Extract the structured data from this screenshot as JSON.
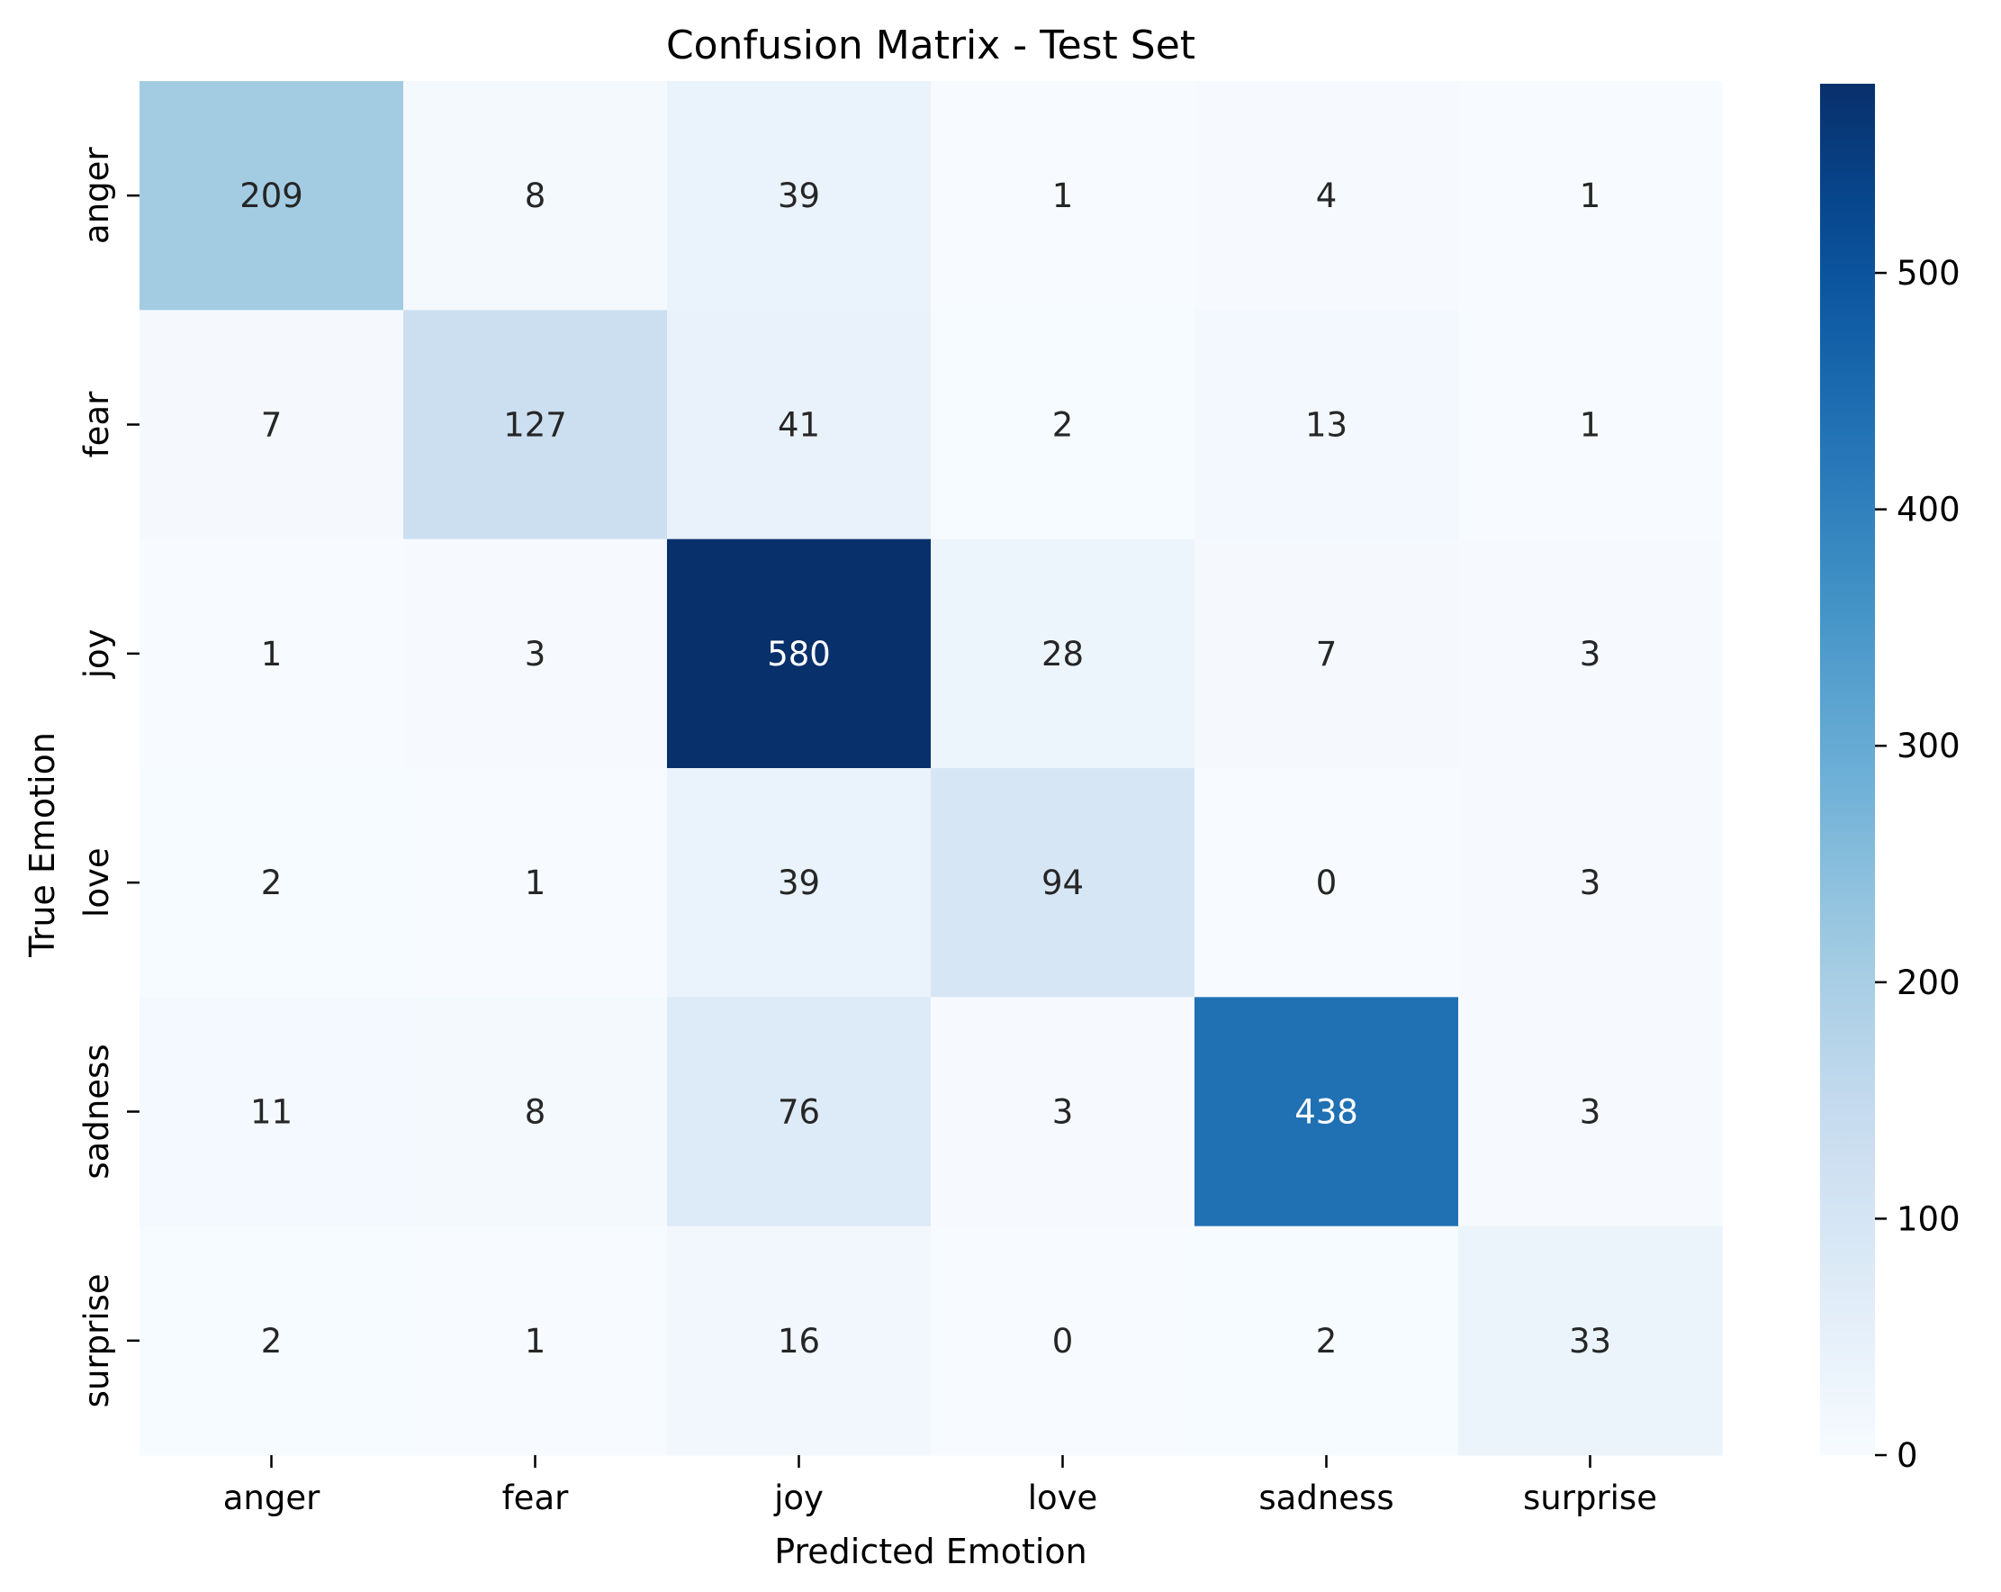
{
  "chart_data": {
    "type": "heatmap",
    "title": "Confusion Matrix - Test Set",
    "xlabel": "Predicted Emotion",
    "ylabel": "True Emotion",
    "x_categories": [
      "anger",
      "fear",
      "joy",
      "love",
      "sadness",
      "surprise"
    ],
    "y_categories": [
      "anger",
      "fear",
      "joy",
      "love",
      "sadness",
      "surprise"
    ],
    "values": [
      [
        209,
        8,
        39,
        1,
        4,
        1
      ],
      [
        7,
        127,
        41,
        2,
        13,
        1
      ],
      [
        1,
        3,
        580,
        28,
        7,
        3
      ],
      [
        2,
        1,
        39,
        94,
        0,
        3
      ],
      [
        11,
        8,
        76,
        3,
        438,
        3
      ],
      [
        2,
        1,
        16,
        0,
        2,
        33
      ]
    ],
    "colormap": "Blues",
    "vmin": 0,
    "vmax": 580,
    "colorbar_ticks": [
      0,
      100,
      200,
      300,
      400,
      500
    ]
  }
}
